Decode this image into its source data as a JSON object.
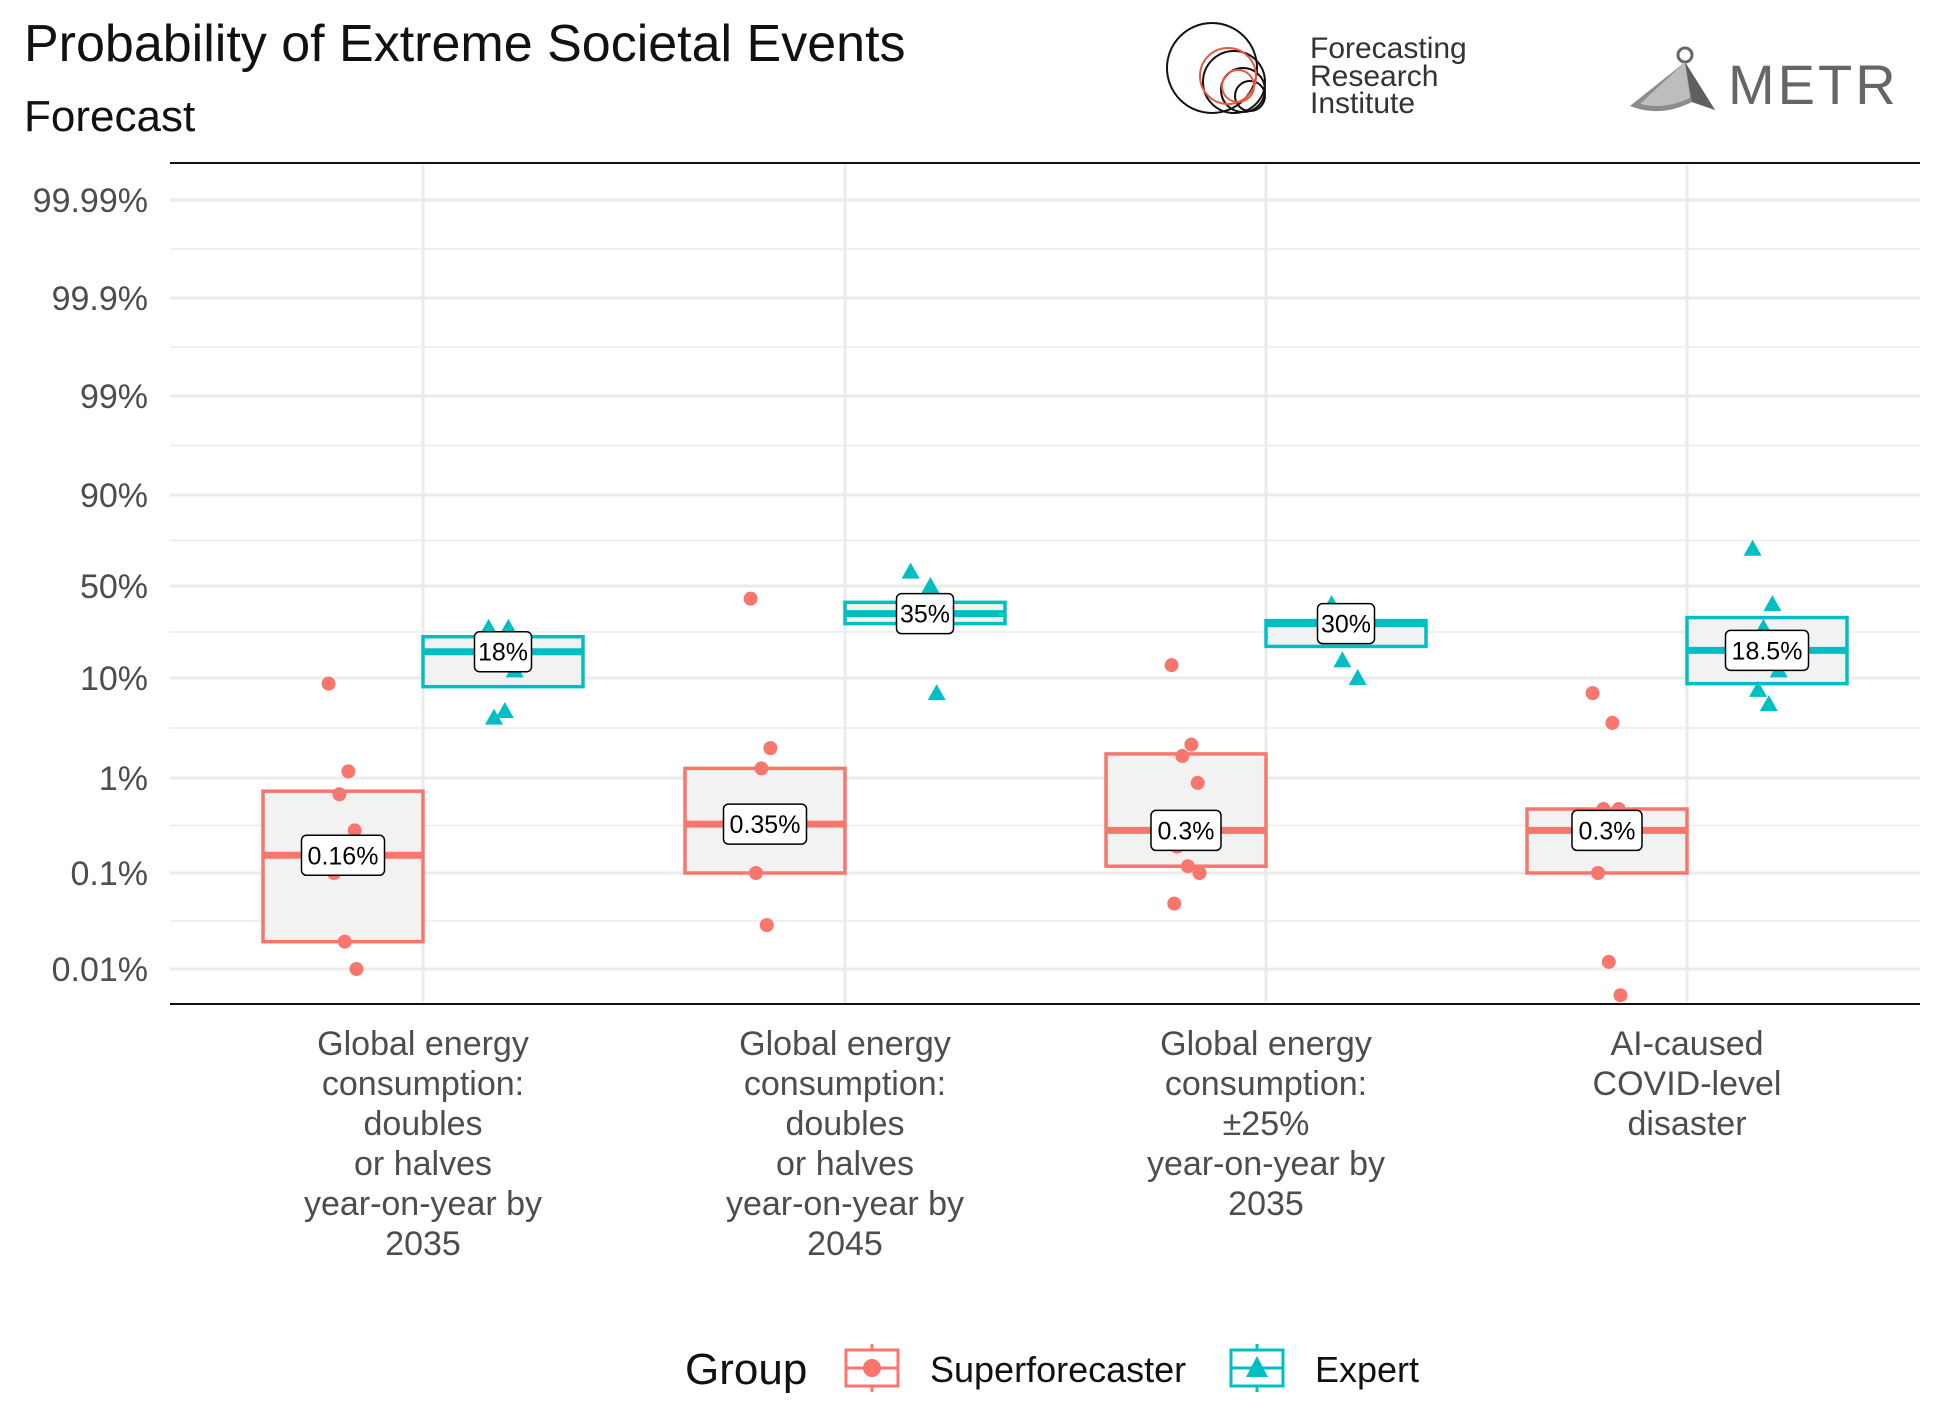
{
  "title": "Probability of Extreme Societal Events",
  "subtitle": "Forecast",
  "logos": {
    "fri": {
      "line1": "Forecasting",
      "line2": "Research",
      "line3": "Institute",
      "accent": "#e9573f"
    },
    "metr": {
      "text": "METR"
    }
  },
  "colors": {
    "superforecaster": "#f8766d",
    "expert": "#00bfc4",
    "box_fill": "#f2f2f2",
    "grid": "#ebebeb",
    "axis_text": "#4d4d4d"
  },
  "chart_data": {
    "type": "boxplot",
    "y_scale": "probit (probability)",
    "y_ticks": [
      {
        "label": "99.99%",
        "p": 0.9999
      },
      {
        "label": "99.9%",
        "p": 0.999
      },
      {
        "label": "99%",
        "p": 0.99
      },
      {
        "label": "90%",
        "p": 0.9
      },
      {
        "label": "50%",
        "p": 0.5
      },
      {
        "label": "10%",
        "p": 0.1
      },
      {
        "label": "1%",
        "p": 0.01
      },
      {
        "label": "0.1%",
        "p": 0.001
      },
      {
        "label": "0.01%",
        "p": 0.0001
      }
    ],
    "ylim": [
      4.5e-05,
      0.99996
    ],
    "legend": {
      "title": "Group",
      "position": "bottom",
      "items": [
        "Superforecaster",
        "Expert"
      ]
    },
    "categories": [
      {
        "label_lines": [
          "Global energy",
          "consumption:",
          "doubles",
          "or halves",
          "year-on-year by",
          "2035"
        ],
        "superforecaster": {
          "median_label": "0.16%",
          "median": 0.0016,
          "q1": 0.0002,
          "q3": 0.0075,
          "points": [
            0.09,
            0.012,
            0.007,
            0.003,
            0.001,
            0.0002,
            0.0001
          ]
        },
        "expert": {
          "median_label": "18%",
          "median": 0.18,
          "q1": 0.085,
          "q3": 0.24,
          "points": [
            0.28,
            0.28,
            0.18,
            0.12,
            0.045,
            0.052
          ]
        }
      },
      {
        "label_lines": [
          "Global energy",
          "consumption:",
          "doubles",
          "or halves",
          "year-on-year by",
          "2045"
        ],
        "superforecaster": {
          "median_label": "0.35%",
          "median": 0.0035,
          "q1": 0.001,
          "q3": 0.013,
          "points": [
            0.43,
            0.022,
            0.013,
            0.0025,
            0.001,
            0.0003
          ]
        },
        "expert": {
          "median_label": "35%",
          "median": 0.35,
          "q1": 0.3,
          "q3": 0.41,
          "points": [
            0.58,
            0.5,
            0.38,
            0.075
          ]
        }
      },
      {
        "label_lines": [
          "Global energy",
          "consumption:",
          "±25%",
          "year-on-year by",
          "2035"
        ],
        "superforecaster": {
          "median_label": "0.3%",
          "median": 0.003,
          "q1": 0.0012,
          "q3": 0.019,
          "points": [
            0.135,
            0.024,
            0.018,
            0.009,
            0.002,
            0.0012,
            0.001,
            0.0005
          ]
        },
        "expert": {
          "median_label": "30%",
          "median": 0.3,
          "q1": 0.2,
          "q3": 0.315,
          "points": [
            0.4,
            0.33,
            0.15,
            0.1
          ]
        }
      },
      {
        "label_lines": [
          "AI-caused",
          "COVID-level",
          "disaster"
        ],
        "superforecaster": {
          "median_label": "0.3%",
          "median": 0.003,
          "q1": 0.001,
          "q3": 0.005,
          "points": [
            0.075,
            0.04,
            0.005,
            0.005,
            0.001,
            0.00012,
            5e-05
          ]
        },
        "expert": {
          "median_label": "18.5%",
          "median": 0.185,
          "q1": 0.09,
          "q3": 0.33,
          "points": [
            0.7,
            0.4,
            0.28,
            0.12,
            0.08,
            0.06
          ]
        }
      }
    ]
  }
}
